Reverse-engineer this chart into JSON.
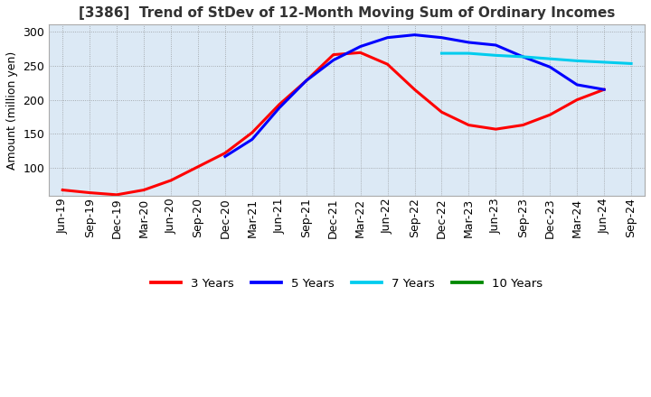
{
  "title": "[3386]  Trend of StDev of 12-Month Moving Sum of Ordinary Incomes",
  "ylabel": "Amount (million yen)",
  "ylim": [
    60,
    310
  ],
  "yticks": [
    100,
    150,
    200,
    250,
    300
  ],
  "plot_bg_color": "#dce9f5",
  "fig_bg_color": "#ffffff",
  "grid_color": "#888888",
  "x_labels": [
    "Jun-19",
    "Sep-19",
    "Dec-19",
    "Mar-20",
    "Jun-20",
    "Sep-20",
    "Dec-20",
    "Mar-21",
    "Jun-21",
    "Sep-21",
    "Dec-21",
    "Mar-22",
    "Jun-22",
    "Sep-22",
    "Dec-22",
    "Mar-23",
    "Jun-23",
    "Sep-23",
    "Dec-23",
    "Mar-24",
    "Jun-24",
    "Sep-24"
  ],
  "series_order": [
    "3 Years",
    "5 Years",
    "7 Years",
    "10 Years"
  ],
  "series": {
    "3 Years": {
      "color": "#ff0000",
      "data_x": [
        0,
        1,
        2,
        3,
        4,
        5,
        6,
        7,
        8,
        9,
        10,
        11,
        12,
        13,
        14,
        15,
        16,
        17,
        18,
        19,
        20
      ],
      "data_y": [
        68,
        64,
        61,
        68,
        82,
        102,
        122,
        152,
        193,
        228,
        266,
        269,
        252,
        215,
        182,
        163,
        157,
        163,
        178,
        200,
        215
      ]
    },
    "5 Years": {
      "color": "#0000ff",
      "data_x": [
        6,
        7,
        8,
        9,
        10,
        11,
        12,
        13,
        14,
        15,
        16,
        17,
        18,
        19,
        20
      ],
      "data_y": [
        117,
        142,
        188,
        228,
        258,
        278,
        291,
        295,
        291,
        284,
        280,
        263,
        248,
        222,
        215
      ]
    },
    "7 Years": {
      "color": "#00ccee",
      "data_x": [
        14,
        15,
        16,
        17,
        18,
        19,
        20,
        21
      ],
      "data_y": [
        268,
        268,
        265,
        263,
        260,
        257,
        255,
        253
      ]
    },
    "10 Years": {
      "color": "#008800",
      "data_x": [],
      "data_y": []
    }
  },
  "legend_labels": [
    "3 Years",
    "5 Years",
    "7 Years",
    "10 Years"
  ],
  "legend_colors": [
    "#ff0000",
    "#0000ff",
    "#00ccee",
    "#008800"
  ],
  "linewidth": 2.2,
  "title_fontsize": 11,
  "axis_fontsize": 9,
  "tick_fontsize": 9
}
